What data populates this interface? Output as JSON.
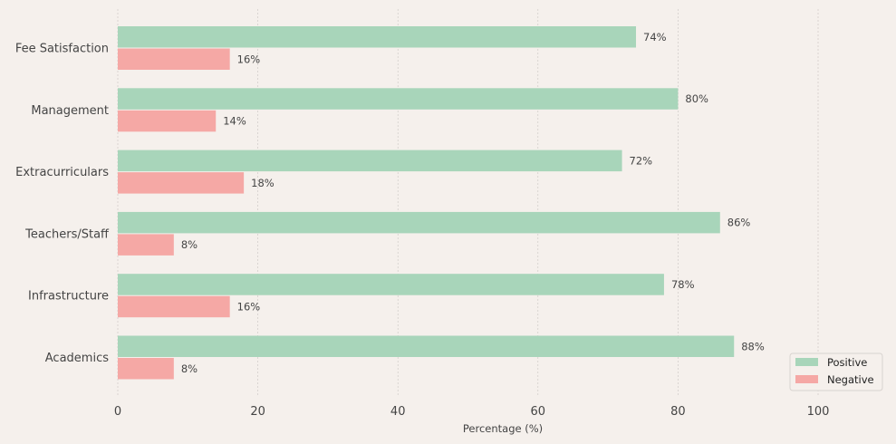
{
  "chart_data": {
    "type": "bar",
    "orientation": "horizontal",
    "title": "",
    "xlabel": "Percentage (%)",
    "ylabel": "",
    "xlim": [
      0,
      110
    ],
    "x_ticks": [
      0,
      20,
      40,
      60,
      80,
      100
    ],
    "grid": "vertical-dashed",
    "categories": [
      "Fee Satisfaction",
      "Management",
      "Extracurriculars",
      "Teachers/Staff",
      "Infrastructure",
      "Academics"
    ],
    "series": [
      {
        "name": "Positive",
        "color": "#a8d5ba",
        "values": [
          74,
          80,
          72,
          86,
          78,
          88
        ]
      },
      {
        "name": "Negative",
        "color": "#f5a8a5",
        "values": [
          16,
          14,
          18,
          8,
          16,
          8
        ]
      }
    ],
    "value_suffix": "%",
    "legend_position": "bottom-right"
  }
}
